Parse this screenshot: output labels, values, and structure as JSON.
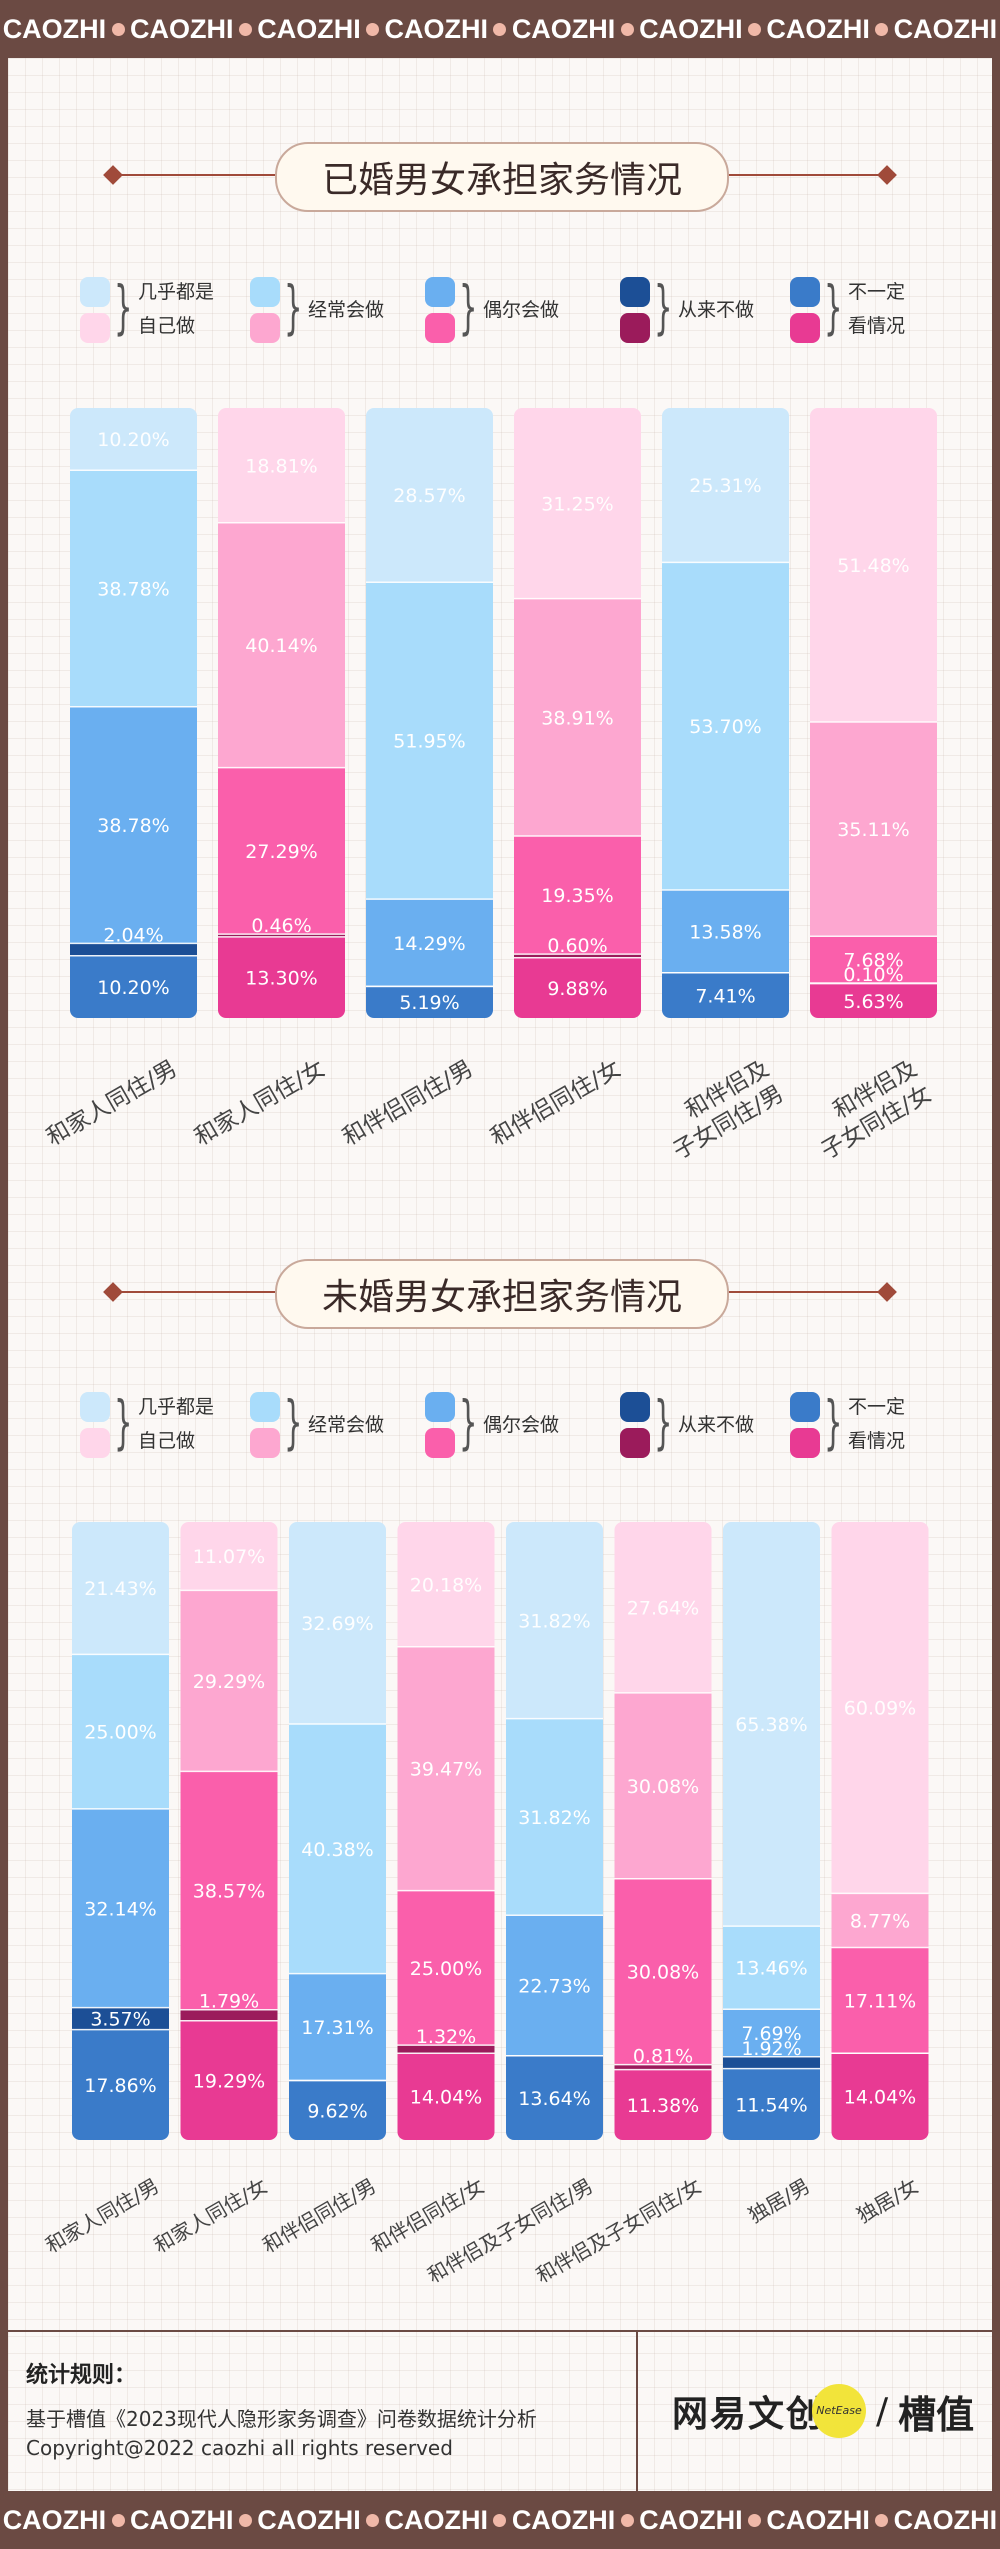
{
  "banner": {
    "word": "CAOZHI",
    "count": 8
  },
  "legend": {
    "items": [
      {
        "label_lines": [
          "几乎都是",
          "自己做"
        ],
        "color_m": "#cce8fb",
        "color_f": "#ffd6ea"
      },
      {
        "label_lines": [
          "经常会做"
        ],
        "color_m": "#a8dcfb",
        "color_f": "#fda7d0"
      },
      {
        "label_lines": [
          "偶尔会做"
        ],
        "color_m": "#6aaff0",
        "color_f": "#fa5fab"
      },
      {
        "label_lines": [
          "从来不做"
        ],
        "color_m": "#1c4f96",
        "color_f": "#9b1b5b"
      },
      {
        "label_lines": [
          "不一定",
          "看情况"
        ],
        "color_m": "#3a7bc9",
        "color_f": "#e83a93"
      }
    ]
  },
  "chart_data": [
    {
      "type": "bar",
      "stacked": true,
      "orientation": "vertical",
      "title": "已婚男女承担家务情况",
      "categories": [
        "和家人同住/男",
        "和家人同住/女",
        "和伴侣同住/男",
        "和伴侣同住/女",
        "和伴侣及\n子女同住/男",
        "和伴侣及\n子女同住/女"
      ],
      "series": [
        {
          "name": "几乎都是自己做",
          "values": [
            10.2,
            18.81,
            28.57,
            31.25,
            25.31,
            51.48
          ]
        },
        {
          "name": "经常会做",
          "values": [
            38.78,
            40.14,
            51.95,
            38.91,
            53.7,
            35.11
          ]
        },
        {
          "name": "偶尔会做",
          "values": [
            38.78,
            27.29,
            14.29,
            19.35,
            13.58,
            7.68
          ]
        },
        {
          "name": "从来不做",
          "values": [
            2.04,
            0.46,
            null,
            0.6,
            null,
            0.1
          ]
        },
        {
          "name": "不一定看情况",
          "values": [
            10.2,
            13.3,
            5.19,
            9.88,
            7.41,
            5.63
          ]
        }
      ],
      "labels": [
        [
          "10.20%",
          "38.78%",
          "38.78%",
          "2.04%",
          "10.20%"
        ],
        [
          "18.81%",
          "40.14%",
          "27.29%",
          "0.46%",
          "13.30%"
        ],
        [
          "28.57%",
          "51.95%",
          "14.29%",
          "",
          "5.19%"
        ],
        [
          "31.25%",
          "38.91%",
          "19.35%",
          "0.60%",
          "9.88%"
        ],
        [
          "25.31%",
          "53.70%",
          "13.58%",
          "",
          "7.41%"
        ],
        [
          "51.48%",
          "35.11%",
          "7.68%",
          "0.10%",
          "5.63%"
        ]
      ],
      "gender": [
        "m",
        "f",
        "m",
        "f",
        "m",
        "f"
      ],
      "ylim": [
        0,
        100
      ]
    },
    {
      "type": "bar",
      "stacked": true,
      "orientation": "vertical",
      "title": "未婚男女承担家务情况",
      "categories": [
        "和家人同住/男",
        "和家人同住/女",
        "和伴侣同住/男",
        "和伴侣同住/女",
        "和伴侣及子女同住/男",
        "和伴侣及子女同住/女",
        "独居/男",
        "独居/女"
      ],
      "series": [
        {
          "name": "几乎都是自己做",
          "values": [
            21.43,
            11.07,
            32.69,
            20.18,
            31.82,
            27.64,
            65.38,
            60.09
          ]
        },
        {
          "name": "经常会做",
          "values": [
            25.0,
            29.29,
            40.38,
            39.47,
            31.82,
            30.08,
            13.46,
            8.77
          ]
        },
        {
          "name": "偶尔会做",
          "values": [
            32.14,
            38.57,
            17.31,
            25.0,
            22.73,
            30.08,
            7.69,
            17.11
          ]
        },
        {
          "name": "从来不做",
          "values": [
            3.57,
            1.79,
            null,
            1.32,
            null,
            0.81,
            1.92,
            null
          ]
        },
        {
          "name": "不一定看情况",
          "values": [
            17.86,
            19.29,
            9.62,
            14.04,
            13.64,
            11.38,
            11.54,
            14.04
          ]
        }
      ],
      "labels": [
        [
          "21.43%",
          "25.00%",
          "32.14%",
          "3.57%",
          "17.86%"
        ],
        [
          "11.07%",
          "29.29%",
          "38.57%",
          "1.79%",
          "19.29%"
        ],
        [
          "32.69%",
          "40.38%",
          "17.31%",
          "",
          "9.62%"
        ],
        [
          "20.18%",
          "39.47%",
          "25.00%",
          "1.32%",
          "14.04%"
        ],
        [
          "31.82%",
          "31.82%",
          "22.73%",
          "",
          "13.64%"
        ],
        [
          "27.64%",
          "30.08%",
          "30.08%",
          "0.81%",
          "11.38%"
        ],
        [
          "65.38%",
          "13.46%",
          "7.69%",
          "1.92%",
          "11.54%"
        ],
        [
          "60.09%",
          "8.77%",
          "17.11%",
          "",
          "14.04%"
        ]
      ],
      "gender": [
        "m",
        "f",
        "m",
        "f",
        "m",
        "f",
        "m",
        "f"
      ],
      "ylim": [
        0,
        100
      ]
    }
  ],
  "footer": {
    "heading": "统计规则：",
    "line1": "基于槽值《2023现代人隐形家务调查》问卷数据统计分析",
    "line2": "Copyright@2022 caozhi all rights reserved",
    "brand1": "网易文创",
    "badge": "NetEase",
    "slash": "/",
    "brand2": "槽值"
  }
}
